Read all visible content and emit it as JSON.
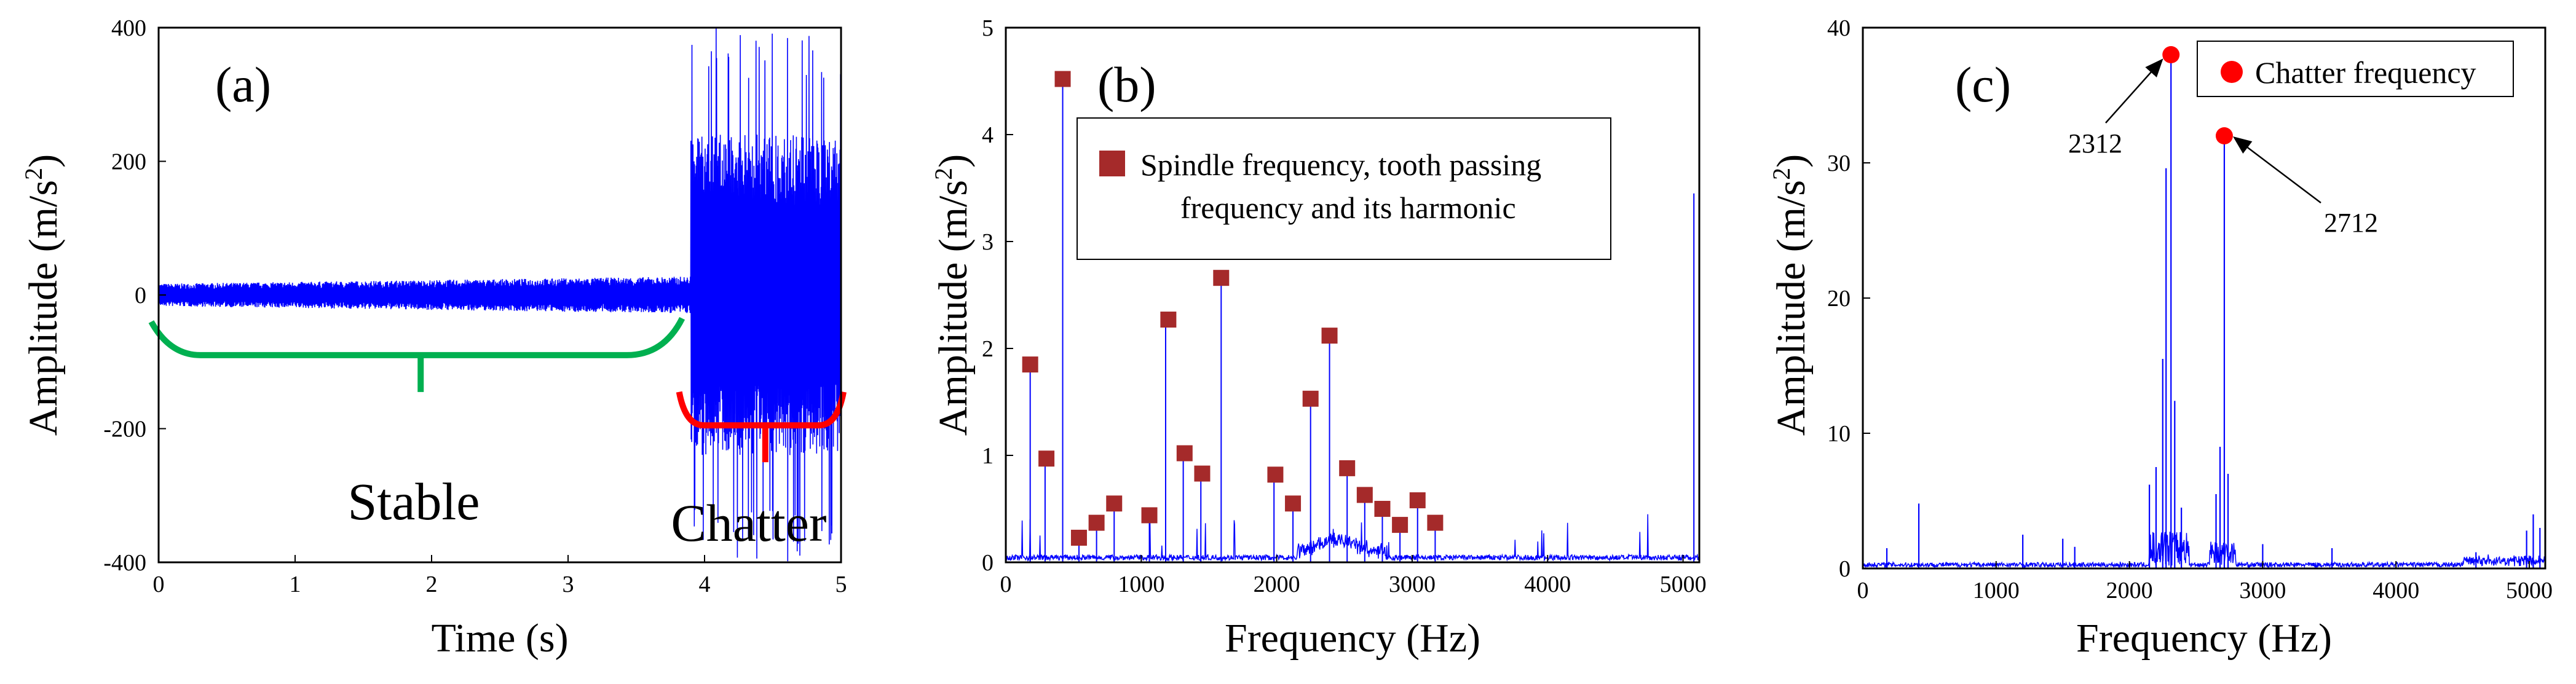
{
  "chart_data": [
    {
      "id": "a",
      "type": "line",
      "panel_label": "(a)",
      "xlabel": "Time  (s)",
      "ylabel_main": "Amplitude  (m/s",
      "ylabel_sup": "2",
      "ylabel_close": ")",
      "xlim": [
        0,
        5
      ],
      "ylim": [
        -400,
        400
      ],
      "xticks": [
        "0",
        "1",
        "2",
        "3",
        "4",
        "5"
      ],
      "yticks": [
        "-400",
        "-200",
        "0",
        "200",
        "400"
      ],
      "series_color": "#0000ff",
      "stable_end_s": 3.9,
      "stable_amplitude": 14,
      "chatter_envelope": 240,
      "chatter_burst_amplitude": 400,
      "regions": [
        {
          "label": "Stable",
          "from": 0,
          "to": 3.8,
          "color": "#00b050"
        },
        {
          "label": "Chatter",
          "from": 3.85,
          "to": 5,
          "color": "#ff0000"
        }
      ]
    },
    {
      "id": "b",
      "type": "line",
      "panel_label": "(b)",
      "xlabel": "Frequency  (Hz)",
      "ylabel_main": "Amplitude  (m/s",
      "ylabel_sup": "2",
      "ylabel_close": ")",
      "xlim": [
        0,
        5120
      ],
      "ylim": [
        0,
        5
      ],
      "xticks": [
        "0",
        "1000",
        "2000",
        "3000",
        "4000",
        "5000"
      ],
      "yticks": [
        "0",
        "1",
        "2",
        "3",
        "4",
        "5"
      ],
      "series_color": "#0000ff",
      "marker_color": "#a52a2a",
      "legend": [
        "Spindle frequency, tooth passing",
        "frequency and its harmonic"
      ],
      "spectral_lines": [
        {
          "f": 180,
          "a": 1.8
        },
        {
          "f": 290,
          "a": 0.92
        },
        {
          "f": 420,
          "a": 4.5
        },
        {
          "f": 540,
          "a": 0.2
        },
        {
          "f": 670,
          "a": 0.35
        },
        {
          "f": 800,
          "a": 0.52
        },
        {
          "f": 1060,
          "a": 0.42
        },
        {
          "f": 1180,
          "a": 2.25
        },
        {
          "f": 1310,
          "a": 1.0
        },
        {
          "f": 1440,
          "a": 0.8
        },
        {
          "f": 1590,
          "a": 2.65
        },
        {
          "f": 1980,
          "a": 0.8
        },
        {
          "f": 2120,
          "a": 0.52
        },
        {
          "f": 2250,
          "a": 1.5
        },
        {
          "f": 2390,
          "a": 2.1
        },
        {
          "f": 2520,
          "a": 0.85
        },
        {
          "f": 2650,
          "a": 0.6
        },
        {
          "f": 2780,
          "a": 0.48
        },
        {
          "f": 2910,
          "a": 0.32
        },
        {
          "f": 3040,
          "a": 0.55
        },
        {
          "f": 3170,
          "a": 0.35
        },
        {
          "f": 5080,
          "a": 3.45
        }
      ],
      "markers": [
        {
          "f": 180,
          "a": 1.85
        },
        {
          "f": 300,
          "a": 0.97
        },
        {
          "f": 420,
          "a": 4.52
        },
        {
          "f": 540,
          "a": 0.23
        },
        {
          "f": 670,
          "a": 0.37
        },
        {
          "f": 800,
          "a": 0.55
        },
        {
          "f": 1060,
          "a": 0.44
        },
        {
          "f": 1200,
          "a": 2.27
        },
        {
          "f": 1320,
          "a": 1.02
        },
        {
          "f": 1450,
          "a": 0.83
        },
        {
          "f": 1590,
          "a": 2.66
        },
        {
          "f": 1990,
          "a": 0.82
        },
        {
          "f": 2120,
          "a": 0.55
        },
        {
          "f": 2250,
          "a": 1.53
        },
        {
          "f": 2390,
          "a": 2.12
        },
        {
          "f": 2520,
          "a": 0.88
        },
        {
          "f": 2650,
          "a": 0.63
        },
        {
          "f": 2780,
          "a": 0.5
        },
        {
          "f": 2910,
          "a": 0.35
        },
        {
          "f": 3040,
          "a": 0.58
        },
        {
          "f": 3170,
          "a": 0.37
        }
      ]
    },
    {
      "id": "c",
      "type": "line",
      "panel_label": "(c)",
      "xlabel": "Frequency  (Hz)",
      "ylabel_main": "Amplitude  (m/s",
      "ylabel_sup": "2",
      "ylabel_close": ")",
      "xlim": [
        0,
        5120
      ],
      "ylim": [
        0,
        40
      ],
      "xticks": [
        "0",
        "1000",
        "2000",
        "3000",
        "4000",
        "5000"
      ],
      "yticks": [
        "0",
        "10",
        "20",
        "30",
        "40"
      ],
      "series_color": "#0000ff",
      "marker_color": "#ff0000",
      "legend": [
        "Chatter frequency"
      ],
      "chatter_peaks": [
        {
          "f": 2312,
          "a": 38,
          "label": "2312"
        },
        {
          "f": 2712,
          "a": 32,
          "label": "2712"
        }
      ],
      "spectral_lines": [
        {
          "f": 180,
          "a": 1.5
        },
        {
          "f": 420,
          "a": 4.8
        },
        {
          "f": 1200,
          "a": 2.5
        },
        {
          "f": 1500,
          "a": 2.2
        },
        {
          "f": 1590,
          "a": 1.6
        },
        {
          "f": 2150,
          "a": 6.2
        },
        {
          "f": 2200,
          "a": 7.5
        },
        {
          "f": 2250,
          "a": 15.5
        },
        {
          "f": 2275,
          "a": 29.6
        },
        {
          "f": 2312,
          "a": 38.0
        },
        {
          "f": 2340,
          "a": 12.4
        },
        {
          "f": 2390,
          "a": 4.5
        },
        {
          "f": 2650,
          "a": 5.5
        },
        {
          "f": 2680,
          "a": 9.0
        },
        {
          "f": 2712,
          "a": 32.0
        },
        {
          "f": 2740,
          "a": 7.0
        },
        {
          "f": 3000,
          "a": 1.8
        },
        {
          "f": 3520,
          "a": 1.5
        },
        {
          "f": 4600,
          "a": 1.2
        },
        {
          "f": 4980,
          "a": 2.8
        },
        {
          "f": 5030,
          "a": 4.0
        },
        {
          "f": 5080,
          "a": 3.0
        }
      ]
    }
  ]
}
